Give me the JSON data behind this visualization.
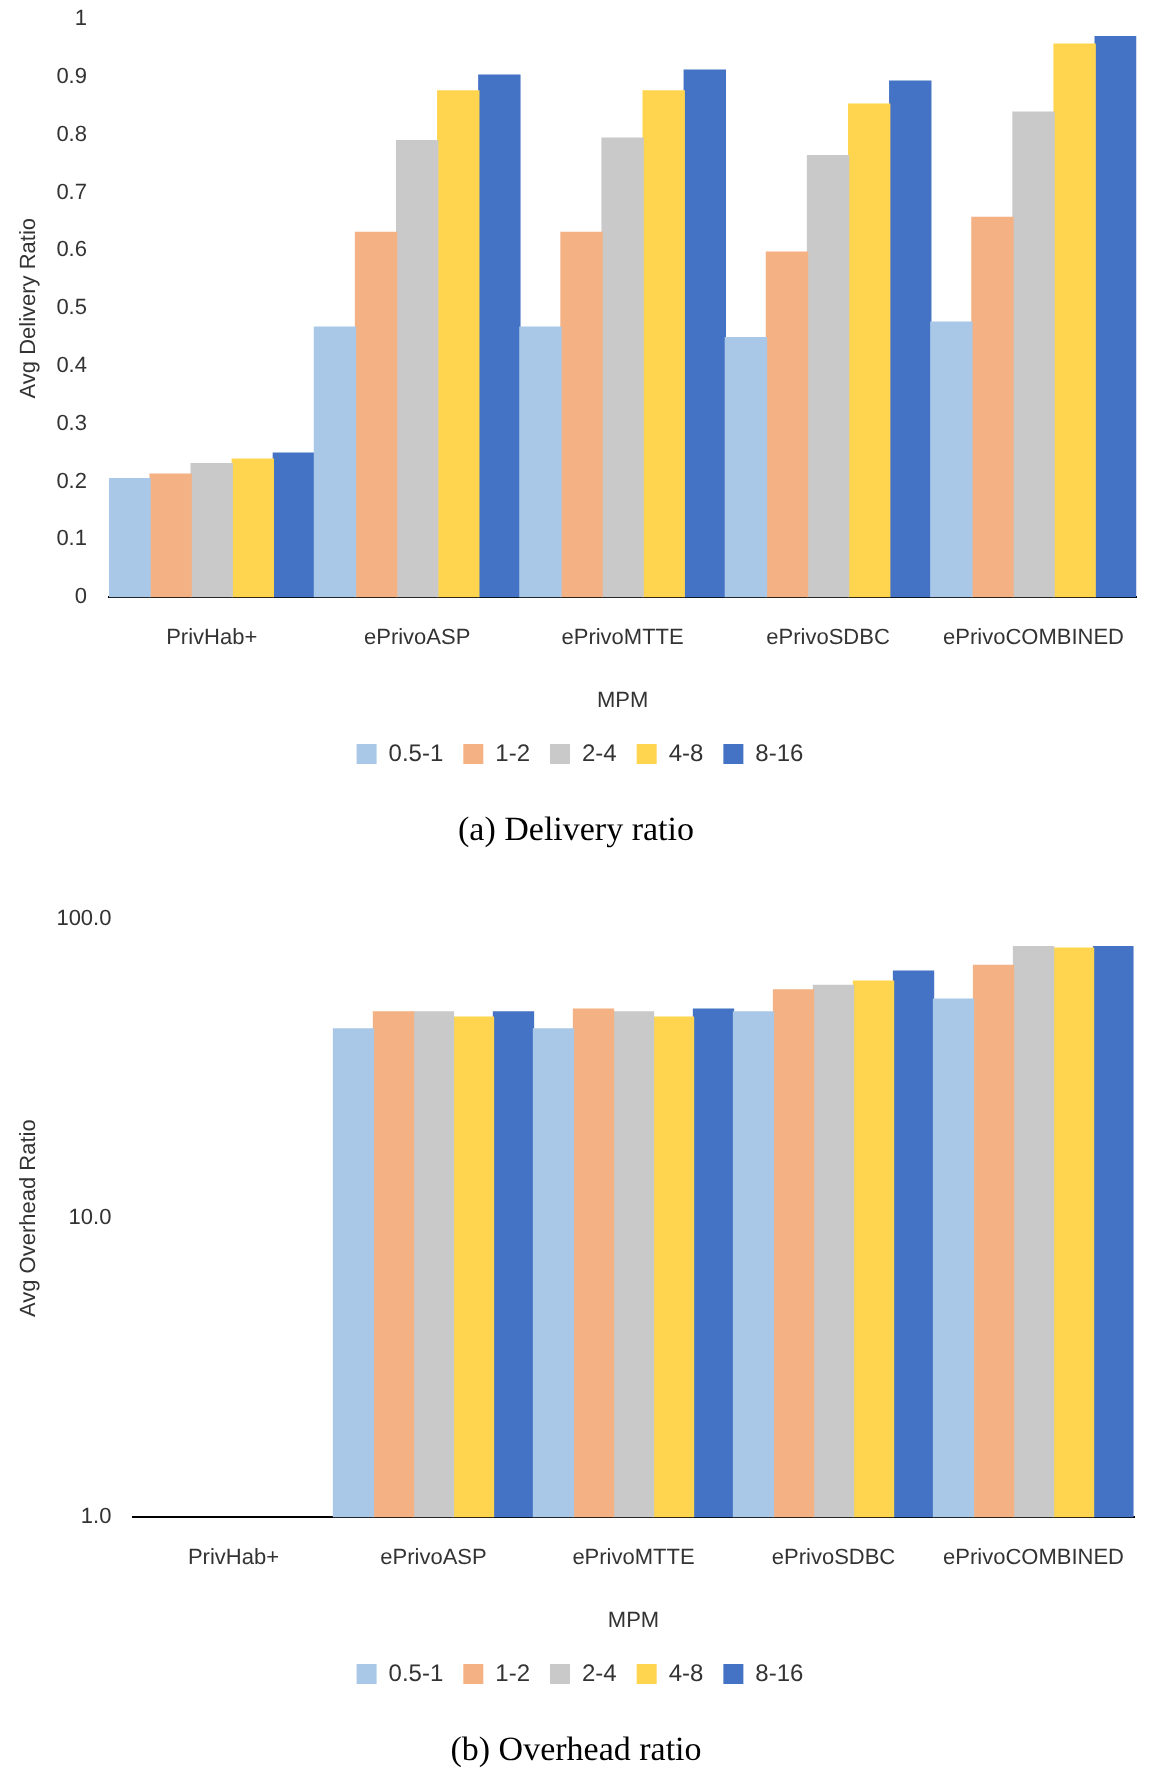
{
  "chart_data": [
    {
      "type": "bar",
      "xlabel": "MPM",
      "ylabel": "Avg Delivery Ratio",
      "categories": [
        "PrivHab+",
        "ePrivoASP",
        "ePrivoMTTE",
        "ePrivoSDBC",
        "ePrivoCOMBINED"
      ],
      "series": [
        {
          "name": "0.5-1",
          "color": "#a9c8e8",
          "values": [
            0.205,
            0.467,
            0.467,
            0.449,
            0.476
          ]
        },
        {
          "name": "1-2",
          "color": "#f4b183",
          "values": [
            0.213,
            0.631,
            0.631,
            0.597,
            0.657
          ]
        },
        {
          "name": "2-4",
          "color": "#c9c9c9",
          "values": [
            0.231,
            0.79,
            0.794,
            0.764,
            0.839
          ]
        },
        {
          "name": "4-8",
          "color": "#ffd54f",
          "values": [
            0.239,
            0.876,
            0.876,
            0.853,
            0.957
          ]
        },
        {
          "name": "8-16",
          "color": "#4472c4",
          "values": [
            0.249,
            0.903,
            0.912,
            0.893,
            0.97
          ]
        }
      ],
      "ylim": [
        0,
        1
      ],
      "yticks": [
        0,
        0.1,
        0.2,
        0.3,
        0.4,
        0.5,
        0.6,
        0.7,
        0.8,
        0.9,
        1
      ],
      "legend": "bottom",
      "annotations": [
        "(a) Delivery ratio"
      ]
    },
    {
      "type": "bar",
      "xlabel": "MPM",
      "ylabel": "Avg Overhead Ratio",
      "categories": [
        "PrivHab+",
        "ePrivoASP",
        "ePrivoMTTE",
        "ePrivoSDBC",
        "ePrivoCOMBINED"
      ],
      "series": [
        {
          "name": "0.5-1",
          "color": "#a9c8e8",
          "values": [
            null,
            43,
            43,
            49,
            54
          ]
        },
        {
          "name": "1-2",
          "color": "#f4b183",
          "values": [
            null,
            49,
            50,
            58,
            70
          ]
        },
        {
          "name": "2-4",
          "color": "#c9c9c9",
          "values": [
            null,
            49,
            49,
            60,
            81
          ]
        },
        {
          "name": "4-8",
          "color": "#ffd54f",
          "values": [
            null,
            47,
            47,
            62,
            80
          ]
        },
        {
          "name": "8-16",
          "color": "#4472c4",
          "values": [
            null,
            49,
            50,
            67,
            81
          ]
        }
      ],
      "log": "y",
      "ylim": [
        1,
        100
      ],
      "yticks": [
        {
          "value": 1,
          "label": "1.0"
        },
        {
          "value": 10,
          "label": "10.0"
        },
        {
          "value": 100,
          "label": "100.0"
        }
      ],
      "legend": "bottom",
      "annotations": [
        "(b) Overhead ratio"
      ]
    }
  ]
}
